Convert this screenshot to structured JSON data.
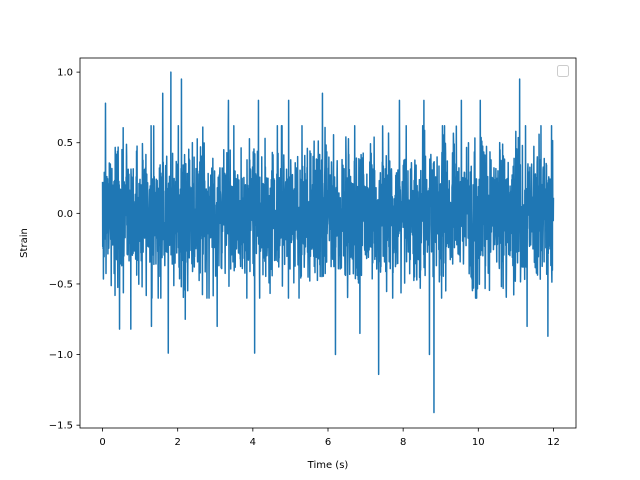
{
  "chart_data": {
    "type": "line",
    "title": "",
    "xlabel": "Time (s)",
    "ylabel": "Strain",
    "xlim": [
      -0.6,
      12.6
    ],
    "ylim": [
      -1.52,
      1.1
    ],
    "xticks": [
      0,
      2,
      4,
      6,
      8,
      10,
      12
    ],
    "xtick_labels": [
      "0",
      "2",
      "4",
      "6",
      "8",
      "10",
      "12"
    ],
    "yticks": [
      -1.5,
      -1.0,
      -0.5,
      0.0,
      0.5,
      1.0
    ],
    "ytick_labels": [
      "−1.5",
      "−1.0",
      "−0.5",
      "0.0",
      "0.5",
      "1.0"
    ],
    "grid": false,
    "legend": {
      "placement": "top-right",
      "entries": []
    },
    "series": [
      {
        "color": "#1f77b4",
        "x_start": 0,
        "x_end": 12,
        "typical_range": [
          -0.6,
          0.62
        ],
        "extremes": [
          {
            "x": 0.08,
            "y": 0.78
          },
          {
            "x": 0.45,
            "y": -0.82
          },
          {
            "x": 0.75,
            "y": -0.82
          },
          {
            "x": 1.3,
            "y": -0.8
          },
          {
            "x": 1.6,
            "y": 0.85
          },
          {
            "x": 1.75,
            "y": -0.99
          },
          {
            "x": 1.82,
            "y": 1.0
          },
          {
            "x": 2.1,
            "y": 0.95
          },
          {
            "x": 2.2,
            "y": -0.75
          },
          {
            "x": 3.05,
            "y": -0.8
          },
          {
            "x": 3.35,
            "y": 0.8
          },
          {
            "x": 4.05,
            "y": -0.99
          },
          {
            "x": 4.15,
            "y": 0.8
          },
          {
            "x": 4.95,
            "y": 0.8
          },
          {
            "x": 5.85,
            "y": 0.85
          },
          {
            "x": 6.2,
            "y": -1.0
          },
          {
            "x": 6.85,
            "y": -0.85
          },
          {
            "x": 7.35,
            "y": -1.14
          },
          {
            "x": 7.9,
            "y": 0.8
          },
          {
            "x": 8.55,
            "y": 0.8
          },
          {
            "x": 8.7,
            "y": -1.0
          },
          {
            "x": 8.82,
            "y": -1.41
          },
          {
            "x": 9.55,
            "y": 0.8
          },
          {
            "x": 10.05,
            "y": 0.8
          },
          {
            "x": 11.1,
            "y": 0.95
          },
          {
            "x": 11.3,
            "y": -0.8
          },
          {
            "x": 11.85,
            "y": -0.87
          },
          {
            "x": 11.95,
            "y": 0.62
          }
        ]
      }
    ]
  }
}
